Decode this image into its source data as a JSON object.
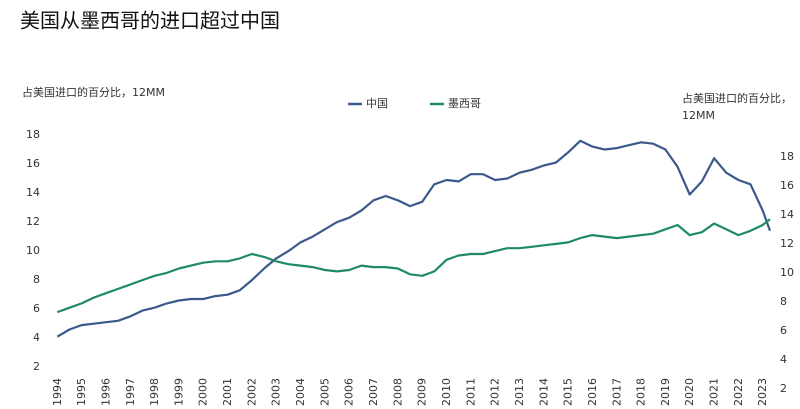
{
  "chart_data": {
    "type": "line",
    "title": "美国从墨西哥的进口超过中国",
    "y_label": "占美国进口的百分比，12MM",
    "y2_label": "占美国进口的百分比，12MM",
    "x": [
      1994,
      1994.5,
      1995,
      1995.5,
      1996,
      1996.5,
      1997,
      1997.5,
      1998,
      1998.5,
      1999,
      1999.5,
      2000,
      2000.5,
      2001,
      2001.5,
      2002,
      2002.5,
      2003,
      2003.5,
      2004,
      2004.5,
      2005,
      2005.5,
      2006,
      2006.5,
      2007,
      2007.5,
      2008,
      2008.5,
      2009,
      2009.5,
      2010,
      2010.5,
      2011,
      2011.5,
      2012,
      2012.5,
      2013,
      2013.5,
      2014,
      2014.5,
      2015,
      2015.5,
      2016,
      2016.5,
      2017,
      2017.5,
      2018,
      2018.5,
      2019,
      2019.5,
      2020,
      2020.5,
      2021,
      2021.5,
      2022,
      2022.5,
      2023,
      2023.3
    ],
    "xlim": [
      1993.7,
      2023.3
    ],
    "xticks": [
      1994,
      1995,
      1996,
      1997,
      1998,
      1999,
      2000,
      2001,
      2002,
      2003,
      2004,
      2005,
      2006,
      2007,
      2008,
      2009,
      2010,
      2011,
      2012,
      2013,
      2014,
      2015,
      2016,
      2017,
      2018,
      2019,
      2020,
      2021,
      2022,
      2023
    ],
    "ylim": [
      0.5,
      18
    ],
    "yticks": [
      2,
      4,
      6,
      8,
      10,
      12,
      14,
      16,
      18
    ],
    "y2lim": [
      2,
      19.5
    ],
    "y2ticks": [
      2,
      4,
      6,
      8,
      10,
      12,
      14,
      16,
      18
    ],
    "series": [
      {
        "name": "中国",
        "color": "#3b5a8a",
        "values": [
          4.1,
          4.6,
          4.9,
          5.0,
          5.1,
          5.2,
          5.5,
          5.9,
          6.1,
          6.4,
          6.6,
          6.7,
          6.7,
          6.9,
          7.0,
          7.3,
          8.0,
          8.8,
          9.5,
          10.0,
          10.6,
          11.0,
          11.5,
          12.0,
          12.3,
          12.8,
          13.5,
          13.8,
          13.5,
          13.1,
          13.4,
          14.6,
          14.9,
          14.8,
          15.3,
          15.3,
          14.9,
          15.0,
          15.4,
          15.6,
          15.9,
          16.1,
          16.8,
          17.6,
          17.2,
          17.0,
          17.1,
          17.3,
          17.5,
          17.4,
          17.0,
          15.8,
          13.9,
          14.8,
          16.4,
          15.4,
          14.9,
          14.6,
          12.8,
          11.4
        ]
      },
      {
        "name": "墨西哥",
        "color": "#1f8a68",
        "values": [
          5.8,
          6.1,
          6.4,
          6.8,
          7.1,
          7.4,
          7.7,
          8.0,
          8.3,
          8.5,
          8.8,
          9.0,
          9.2,
          9.3,
          9.3,
          9.5,
          9.8,
          9.6,
          9.3,
          9.1,
          9.0,
          8.9,
          8.7,
          8.6,
          8.7,
          9.0,
          8.9,
          8.9,
          8.8,
          8.4,
          8.3,
          8.6,
          9.4,
          9.7,
          9.8,
          9.8,
          10.0,
          10.2,
          10.2,
          10.3,
          10.4,
          10.5,
          10.6,
          10.9,
          11.1,
          11.0,
          10.9,
          11.0,
          11.1,
          11.2,
          11.5,
          11.8,
          11.1,
          11.3,
          11.9,
          11.5,
          11.1,
          11.4,
          11.8,
          12.2
        ]
      }
    ]
  }
}
